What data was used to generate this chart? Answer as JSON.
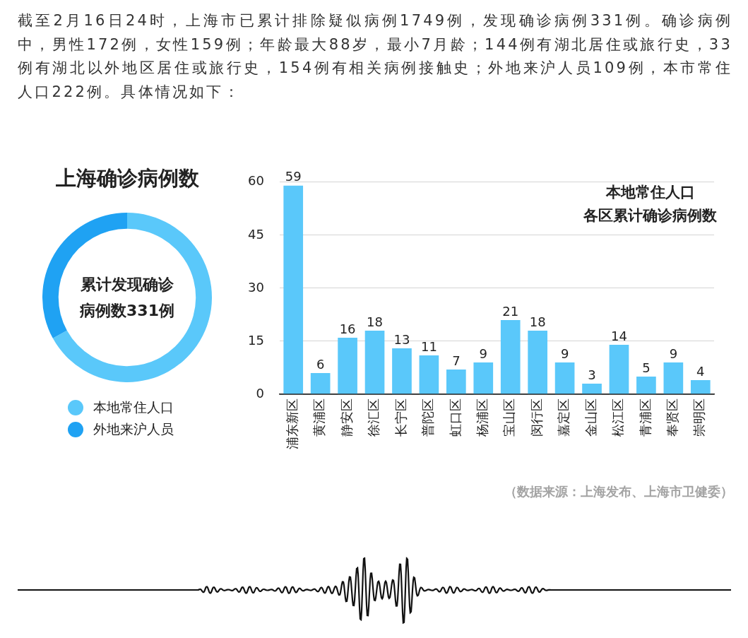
{
  "chart_data": [
    {
      "type": "other",
      "annotations": [
        "截至2月16日24时，上海市已累计排除疑似病例1749例，发现确诊病例331例。确诊病例中，男性172例，女性159例；年龄最大88岁，最小7月龄；144例有湖北居住或旅行史，33例有湖北以外地区居住或旅行史，154例有相关病例接触史；外地来沪人员109例，本市常住人口222例。具体情况如下："
      ]
    },
    {
      "type": "donut",
      "title": "上海确诊病例数",
      "categories": [
        "本地常住人口",
        "外地来沪人员"
      ],
      "values": [
        67,
        33
      ],
      "colors": [
        "#5ac8fa",
        "#1fa2f3"
      ],
      "annotations": [
        "累计发现确诊病例数331例"
      ],
      "legend": "bottom"
    },
    {
      "type": "bar",
      "title": "本地常住人口",
      "subtitle": "各区累计确诊病例数",
      "categories": [
        "浦东新区",
        "黄浦区",
        "静安区",
        "徐汇区",
        "长宁区",
        "普陀区",
        "虹口区",
        "杨浦区",
        "宝山区",
        "闵行区",
        "嘉定区",
        "金山区",
        "松江区",
        "青浦区",
        "奉贤区",
        "崇明区"
      ],
      "values": [
        59,
        6,
        16,
        18,
        13,
        11,
        7,
        9,
        21,
        18,
        9,
        3,
        14,
        5,
        9,
        4
      ],
      "color": "#5ac8fa",
      "ylim": [
        0,
        60
      ],
      "yticks": [
        0,
        15,
        30,
        45,
        60
      ],
      "grid": "y",
      "data_labels": true,
      "annotations": [
        "（数据来源：上海发布、上海市卫健委）"
      ]
    }
  ]
}
